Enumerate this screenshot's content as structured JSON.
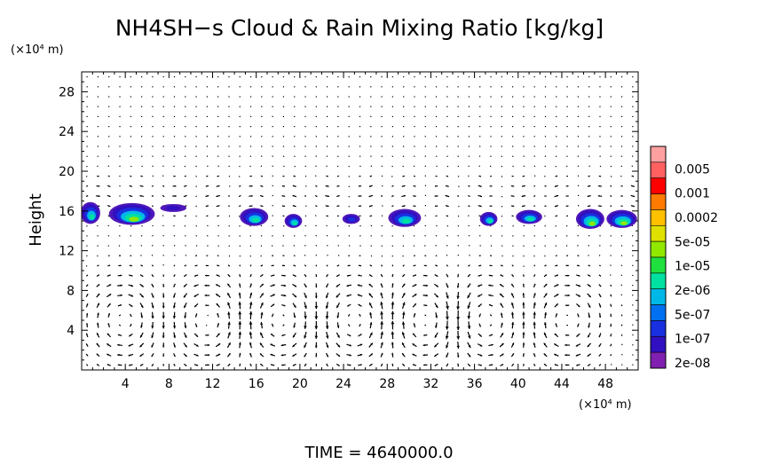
{
  "chart_data": {
    "type": "heatmap",
    "title": "NH4SH−s Cloud & Rain Mixing Ratio [kg/kg]",
    "ylabel": "Height",
    "yunit": "(×10⁴ m)",
    "xunit": "(×10⁴ m)",
    "xlim": [
      0,
      51
    ],
    "ylim": [
      0,
      30
    ],
    "x_ticks": [
      "4",
      "8",
      "12",
      "16",
      "20",
      "24",
      "28",
      "32",
      "36",
      "40",
      "44",
      "48"
    ],
    "x_tick_values": [
      4,
      8,
      12,
      16,
      20,
      24,
      28,
      32,
      36,
      40,
      44,
      48
    ],
    "y_ticks": [
      "4",
      "8",
      "12",
      "16",
      "20",
      "24",
      "28"
    ],
    "y_tick_values": [
      4,
      8,
      12,
      16,
      20,
      24,
      28
    ],
    "legend": {
      "placement": "right",
      "labels": [
        "0.005",
        "0.001",
        "0.0002",
        "5e-05",
        "1e-05",
        "2e-06",
        "5e-07",
        "1e-07",
        "2e-08"
      ],
      "colors": [
        "#ffa0a0",
        "#ff6060",
        "#ff0000",
        "#ff7a00",
        "#ffc000",
        "#e0e000",
        "#90e800",
        "#20e040",
        "#00e0a0",
        "#00b8e8",
        "#0070f0",
        "#1830e0",
        "#3010c0",
        "#8020b0"
      ]
    },
    "clouds": [
      {
        "x": 0.8,
        "y": 15.8,
        "rx": 0.9,
        "ry": 1.1,
        "level": 4
      },
      {
        "x": 4.6,
        "y": 15.7,
        "rx": 2.1,
        "ry": 1.1,
        "level": 5
      },
      {
        "x": 8.4,
        "y": 16.3,
        "rx": 1.2,
        "ry": 0.4,
        "level": 1
      },
      {
        "x": 15.8,
        "y": 15.4,
        "rx": 1.3,
        "ry": 0.9,
        "level": 4
      },
      {
        "x": 19.4,
        "y": 15.0,
        "rx": 0.8,
        "ry": 0.7,
        "level": 4
      },
      {
        "x": 24.7,
        "y": 15.2,
        "rx": 0.8,
        "ry": 0.5,
        "level": 2
      },
      {
        "x": 29.6,
        "y": 15.3,
        "rx": 1.5,
        "ry": 0.9,
        "level": 4
      },
      {
        "x": 37.3,
        "y": 15.2,
        "rx": 0.8,
        "ry": 0.7,
        "level": 4
      },
      {
        "x": 41.0,
        "y": 15.4,
        "rx": 1.2,
        "ry": 0.7,
        "level": 4
      },
      {
        "x": 46.6,
        "y": 15.2,
        "rx": 1.3,
        "ry": 1.0,
        "level": 5
      },
      {
        "x": 49.5,
        "y": 15.2,
        "rx": 1.4,
        "ry": 0.9,
        "level": 5
      }
    ],
    "wind_cells": [
      {
        "x": 3.8,
        "direction": -1
      },
      {
        "x": 11.5,
        "direction": 1
      },
      {
        "x": 18.2,
        "direction": -1
      },
      {
        "x": 25.0,
        "direction": 1
      },
      {
        "x": 31.5,
        "direction": -1
      },
      {
        "x": 37.0,
        "direction": 1
      },
      {
        "x": 44.5,
        "direction": -1
      }
    ]
  },
  "time_label": "TIME  =  4640000.0"
}
